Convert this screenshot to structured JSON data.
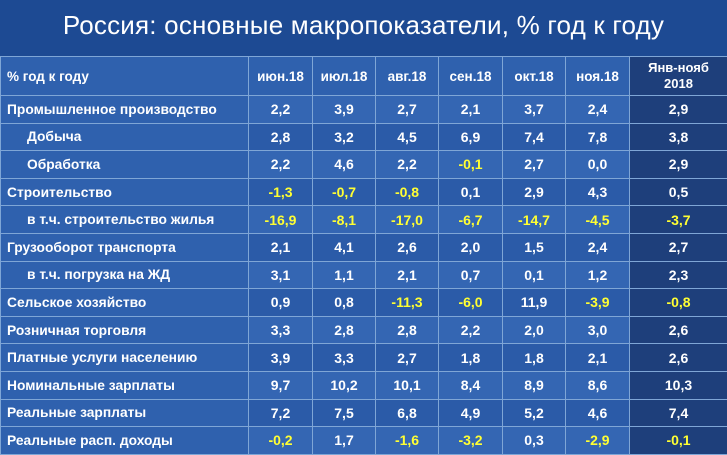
{
  "title": "Россия: основные макропоказатели, % год к году",
  "table": {
    "header": {
      "rowhead": "% год к году",
      "months": [
        "июн.18",
        "июл.18",
        "авг.18",
        "сен.18",
        "окт.18",
        "ноя.18"
      ],
      "total_line1": "Янв-нояб",
      "total_line2": "2018"
    },
    "rows": [
      {
        "label": "Промышленное производство",
        "values": [
          "2,2",
          "3,9",
          "2,7",
          "2,1",
          "3,7",
          "2,4"
        ],
        "total": "2,9"
      },
      {
        "label": "Добыча",
        "values": [
          "2,8",
          "3,2",
          "4,5",
          "6,9",
          "7,4",
          "7,8"
        ],
        "total": "3,8"
      },
      {
        "label": "Обработка",
        "values": [
          "2,2",
          "4,6",
          "2,2",
          "-0,1",
          "2,7",
          "0,0"
        ],
        "total": "2,9"
      },
      {
        "label": "Строительство",
        "values": [
          "-1,3",
          "-0,7",
          "-0,8",
          "0,1",
          "2,9",
          "4,3"
        ],
        "total": "0,5"
      },
      {
        "label": "в т.ч. строительство жилья",
        "values": [
          "-16,9",
          "-8,1",
          "-17,0",
          "-6,7",
          "-14,7",
          "-4,5"
        ],
        "total": "-3,7"
      },
      {
        "label": "Грузооборот транспорта",
        "values": [
          "2,1",
          "4,1",
          "2,6",
          "2,0",
          "1,5",
          "2,4"
        ],
        "total": "2,7"
      },
      {
        "label": "в т.ч. погрузка на ЖД",
        "values": [
          "3,1",
          "1,1",
          "2,1",
          "0,7",
          "0,1",
          "1,2"
        ],
        "total": "2,3"
      },
      {
        "label": "Сельское хозяйство",
        "values": [
          "0,9",
          "0,8",
          "-11,3",
          "-6,0",
          "11,9",
          "-3,9"
        ],
        "total": "-0,8"
      },
      {
        "label": "Розничная торговля",
        "values": [
          "3,3",
          "2,8",
          "2,8",
          "2,2",
          "2,0",
          "3,0"
        ],
        "total": "2,6"
      },
      {
        "label": "Платные услуги населению",
        "values": [
          "3,9",
          "3,3",
          "2,7",
          "1,8",
          "1,8",
          "2,1"
        ],
        "total": "2,6"
      },
      {
        "label": "Номинальные зарплаты",
        "values": [
          "9,7",
          "10,2",
          "10,1",
          "8,4",
          "8,9",
          "8,6"
        ],
        "total": "10,3"
      },
      {
        "label": "Реальные зарплаты",
        "values": [
          "7,2",
          "7,5",
          "6,8",
          "4,9",
          "5,2",
          "4,6"
        ],
        "total": "7,4"
      },
      {
        "label": "Реальные расп. доходы",
        "values": [
          "-0,2",
          "1,7",
          "-1,6",
          "-3,2",
          "0,3",
          "-2,9"
        ],
        "total": "-0,1"
      }
    ]
  },
  "colors": {
    "background": "#1d4a93",
    "cell": "#3466b3",
    "total_column": "#1e3f7b",
    "negative_text": "#ffff33"
  }
}
